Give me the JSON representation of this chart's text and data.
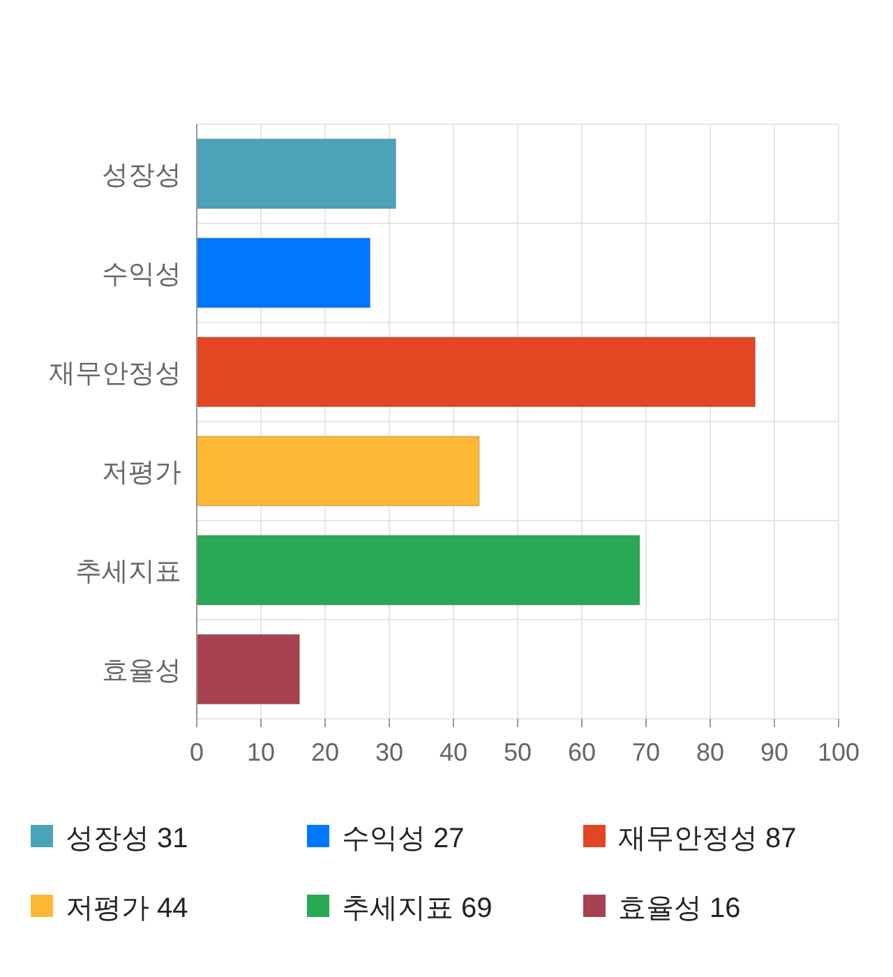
{
  "chart_data": {
    "type": "bar",
    "orientation": "horizontal",
    "stacked": true,
    "categories": [
      "성장성",
      "수익성",
      "재무안정성",
      "저평가",
      "추세지표",
      "효율성"
    ],
    "series": [
      {
        "name": "성장성 31",
        "color": "#4ba3ba",
        "values": [
          31,
          null,
          null,
          null,
          null,
          null
        ]
      },
      {
        "name": "수익성 27",
        "color": "#0077ff",
        "values": [
          null,
          27,
          null,
          null,
          null,
          null
        ]
      },
      {
        "name": "재무안정성 87",
        "color": "#e34623",
        "values": [
          null,
          null,
          87,
          null,
          null,
          null
        ]
      },
      {
        "name": "저평가 44",
        "color": "#ffb833",
        "values": [
          null,
          null,
          null,
          44,
          null,
          null
        ]
      },
      {
        "name": "추세지표 69",
        "color": "#29a855",
        "values": [
          null,
          null,
          null,
          null,
          69,
          null
        ]
      },
      {
        "name": "효율성 16",
        "color": "#a84250",
        "values": [
          null,
          null,
          null,
          null,
          null,
          16
        ]
      }
    ],
    "xlim": [
      0,
      100
    ],
    "xticks": [
      0,
      10,
      20,
      30,
      40,
      50,
      60,
      70,
      80,
      90,
      100
    ],
    "grid": true,
    "legend": "bottom"
  }
}
